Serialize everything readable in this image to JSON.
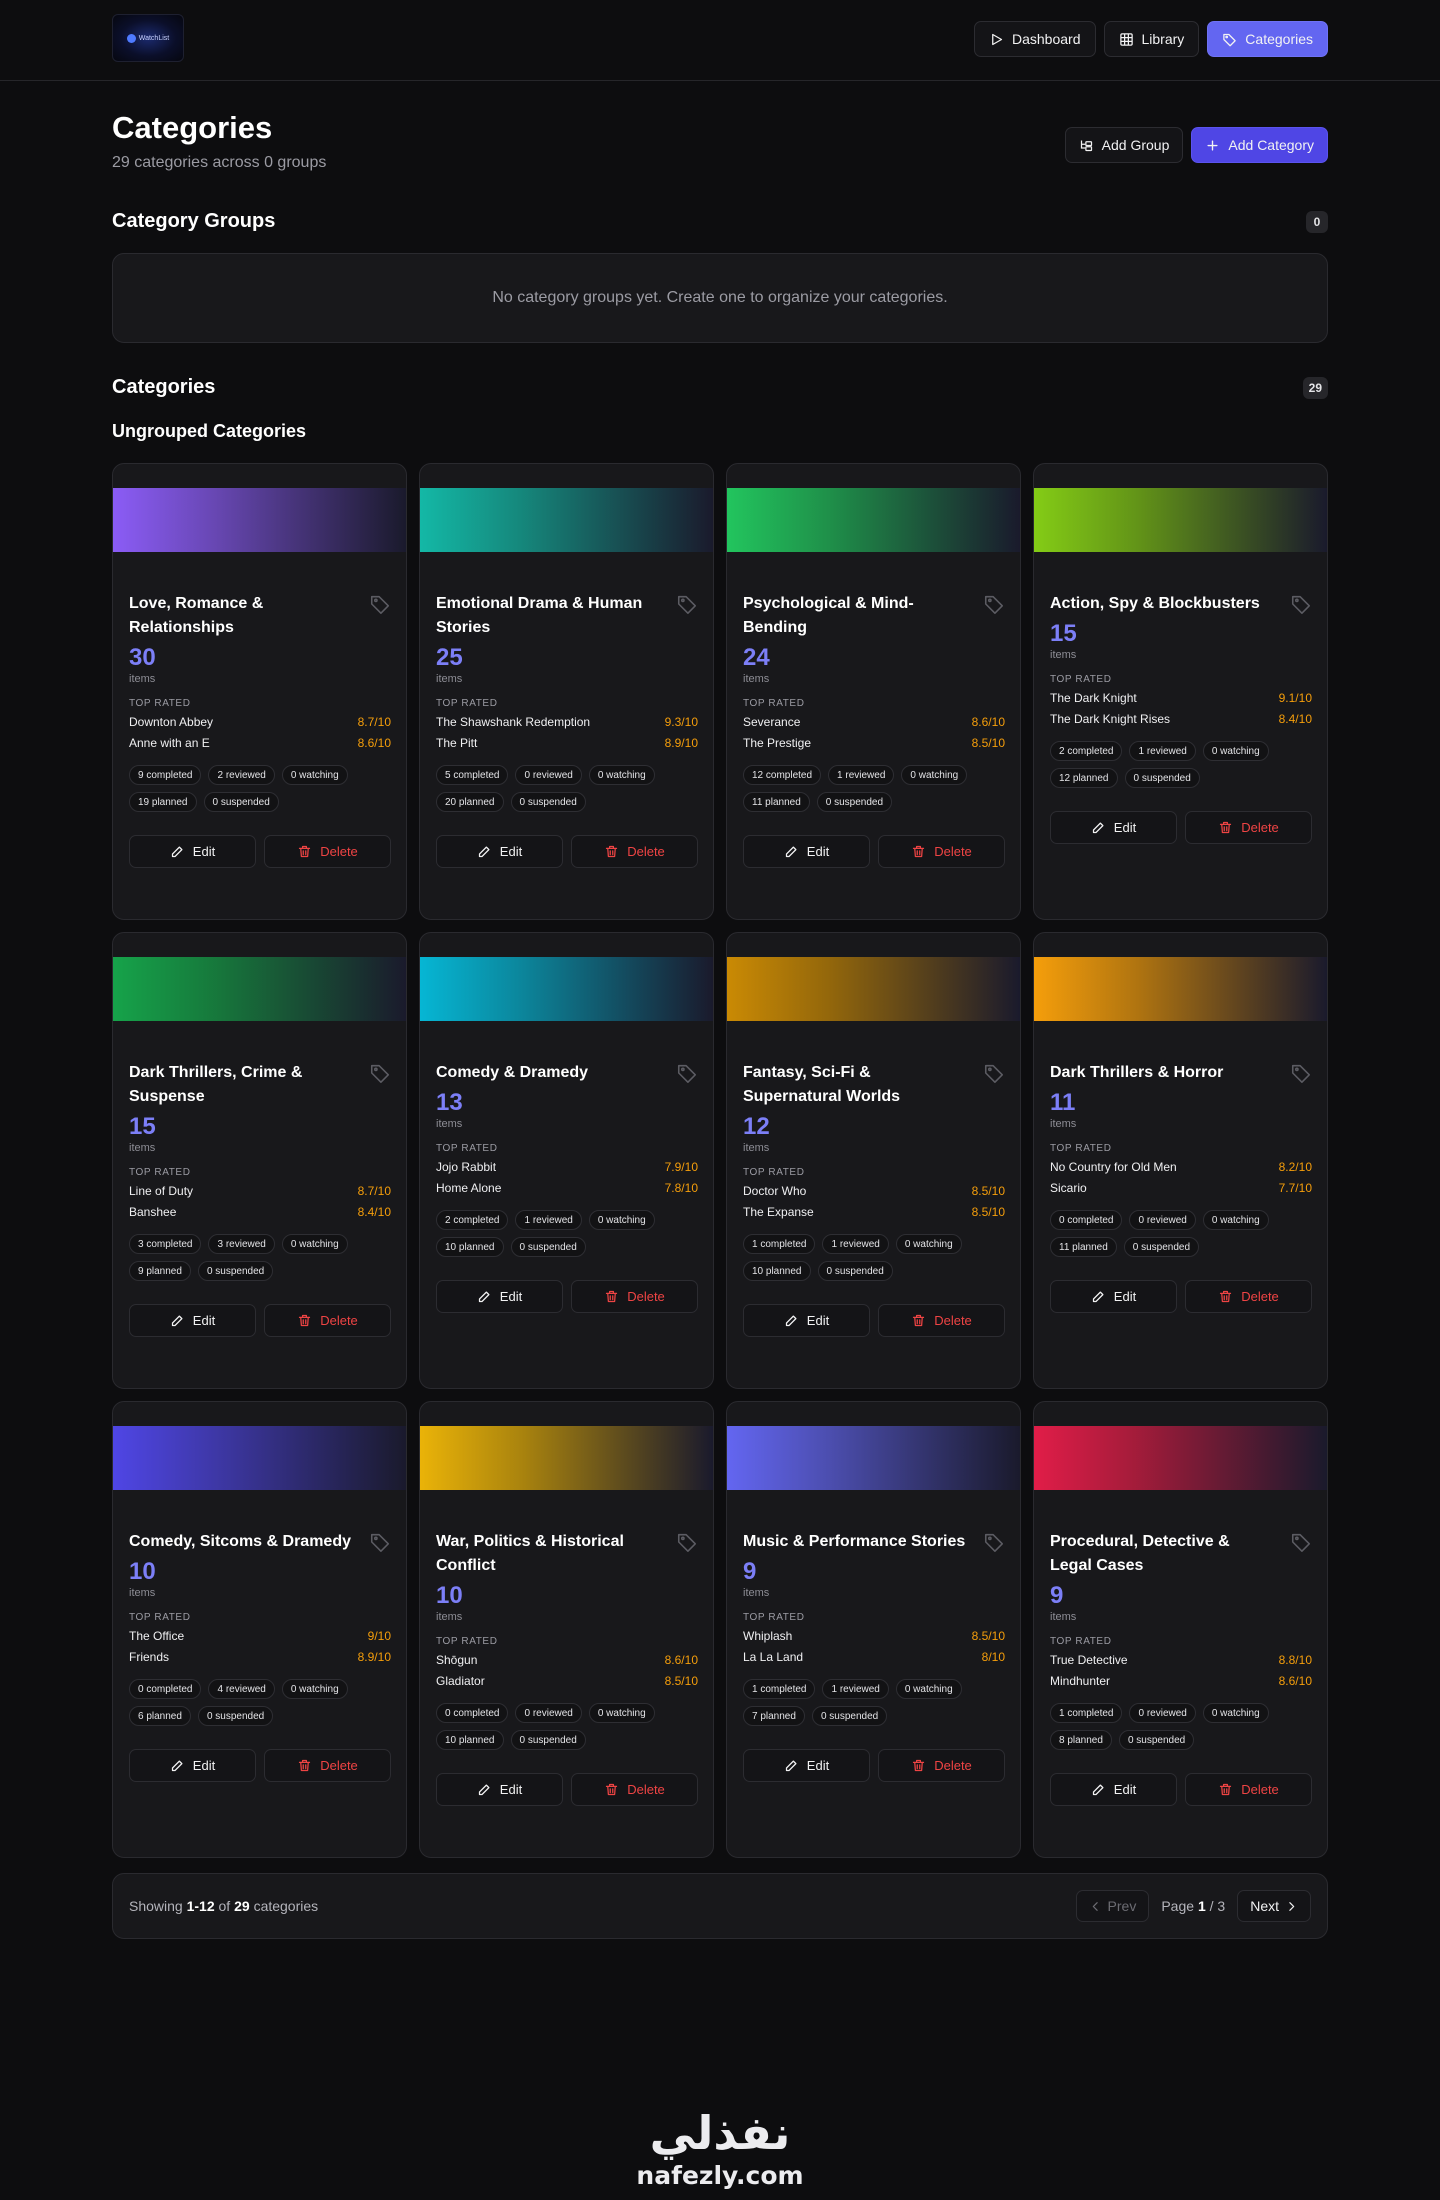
{
  "app": {
    "logo_text": "WatchList"
  },
  "nav": [
    {
      "label": "Dashboard",
      "icon": "play-icon",
      "active": false
    },
    {
      "label": "Library",
      "icon": "grid-icon",
      "active": false
    },
    {
      "label": "Categories",
      "icon": "tag-icon",
      "active": true
    }
  ],
  "header": {
    "title": "Categories",
    "subtitle": "29 categories across 0 groups",
    "add_group_label": "Add Group",
    "add_category_label": "Add Category"
  },
  "groups": {
    "title": "Category Groups",
    "count": "0",
    "empty_text": "No category groups yet. Create one to organize your categories."
  },
  "categories_section": {
    "title": "Categories",
    "count": "29",
    "ungrouped_title": "Ungrouped Categories",
    "items_label": "items",
    "top_rated_label": "TOP RATED",
    "edit_label": "Edit",
    "delete_label": "Delete"
  },
  "cards": [
    {
      "title": "Love, Romance & Relationships",
      "count": "30",
      "color": "#8b5cf6",
      "top": [
        [
          "Downton Abbey",
          "8.7/10"
        ],
        [
          "Anne with an E",
          "8.6/10"
        ]
      ],
      "stats": [
        "9 completed",
        "2 reviewed",
        "0 watching",
        "19 planned",
        "0 suspended"
      ]
    },
    {
      "title": "Emotional Drama & Human Stories",
      "count": "25",
      "color": "#14b8a6",
      "top": [
        [
          "The Shawshank Redemption",
          "9.3/10"
        ],
        [
          "The Pitt",
          "8.9/10"
        ]
      ],
      "stats": [
        "5 completed",
        "0 reviewed",
        "0 watching",
        "20 planned",
        "0 suspended"
      ]
    },
    {
      "title": "Psychological & Mind-Bending",
      "count": "24",
      "color": "#22c55e",
      "top": [
        [
          "Severance",
          "8.6/10"
        ],
        [
          "The Prestige",
          "8.5/10"
        ]
      ],
      "stats": [
        "12 completed",
        "1 reviewed",
        "0 watching",
        "11 planned",
        "0 suspended"
      ]
    },
    {
      "title": "Action, Spy & Blockbusters",
      "count": "15",
      "color": "#84cc16",
      "top": [
        [
          "The Dark Knight",
          "9.1/10"
        ],
        [
          "The Dark Knight Rises",
          "8.4/10"
        ]
      ],
      "stats": [
        "2 completed",
        "1 reviewed",
        "0 watching",
        "12 planned",
        "0 suspended"
      ]
    },
    {
      "title": "Dark Thrillers, Crime & Suspense",
      "count": "15",
      "color": "#16a34a",
      "top": [
        [
          "Line of Duty",
          "8.7/10"
        ],
        [
          "Banshee",
          "8.4/10"
        ]
      ],
      "stats": [
        "3 completed",
        "3 reviewed",
        "0 watching",
        "9 planned",
        "0 suspended"
      ]
    },
    {
      "title": "Comedy & Dramedy",
      "count": "13",
      "color": "#06b6d4",
      "top": [
        [
          "Jojo Rabbit",
          "7.9/10"
        ],
        [
          "Home Alone",
          "7.8/10"
        ]
      ],
      "stats": [
        "2 completed",
        "1 reviewed",
        "0 watching",
        "10 planned",
        "0 suspended"
      ]
    },
    {
      "title": "Fantasy, Sci-Fi & Supernatural Worlds",
      "count": "12",
      "color": "#ca8a04",
      "top": [
        [
          "Doctor Who",
          "8.5/10"
        ],
        [
          "The Expanse",
          "8.5/10"
        ]
      ],
      "stats": [
        "1 completed",
        "1 reviewed",
        "0 watching",
        "10 planned",
        "0 suspended"
      ]
    },
    {
      "title": "Dark Thrillers & Horror",
      "count": "11",
      "color": "#f59e0b",
      "top": [
        [
          "No Country for Old Men",
          "8.2/10"
        ],
        [
          "Sicario",
          "7.7/10"
        ]
      ],
      "stats": [
        "0 completed",
        "0 reviewed",
        "0 watching",
        "11 planned",
        "0 suspended"
      ]
    },
    {
      "title": "Comedy, Sitcoms & Dramedy",
      "count": "10",
      "color": "#4f46e5",
      "top": [
        [
          "The Office",
          "9/10"
        ],
        [
          "Friends",
          "8.9/10"
        ]
      ],
      "stats": [
        "0 completed",
        "4 reviewed",
        "0 watching",
        "6 planned",
        "0 suspended"
      ]
    },
    {
      "title": "War, Politics & Historical Conflict",
      "count": "10",
      "color": "#eab308",
      "top": [
        [
          "Shōgun",
          "8.6/10"
        ],
        [
          "Gladiator",
          "8.5/10"
        ]
      ],
      "stats": [
        "0 completed",
        "0 reviewed",
        "0 watching",
        "10 planned",
        "0 suspended"
      ]
    },
    {
      "title": "Music & Performance Stories",
      "count": "9",
      "color": "#6366f1",
      "top": [
        [
          "Whiplash",
          "8.5/10"
        ],
        [
          "La La Land",
          "8/10"
        ]
      ],
      "stats": [
        "1 completed",
        "1 reviewed",
        "0 watching",
        "7 planned",
        "0 suspended"
      ]
    },
    {
      "title": "Procedural, Detective & Legal Cases",
      "count": "9",
      "color": "#e11d48",
      "top": [
        [
          "True Detective",
          "8.8/10"
        ],
        [
          "Mindhunter",
          "8.6/10"
        ]
      ],
      "stats": [
        "1 completed",
        "0 reviewed",
        "0 watching",
        "8 planned",
        "0 suspended"
      ]
    }
  ],
  "pagination": {
    "showing_prefix": "Showing",
    "range": "1-12",
    "of_text": "of",
    "total": "29",
    "suffix": "categories",
    "prev_label": "Prev",
    "next_label": "Next",
    "page_label": "Page",
    "current_page": "1",
    "total_pages": "3"
  },
  "footer": {
    "arabic": "نفذلي",
    "latin": "nafezly.com"
  }
}
